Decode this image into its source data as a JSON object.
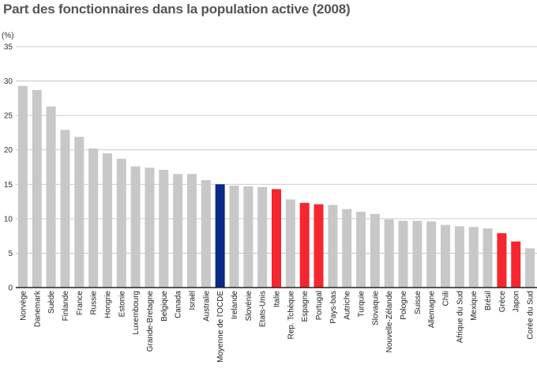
{
  "chart_data": {
    "type": "bar",
    "title": "Part des fonctionnaires dans la population active (2008)",
    "ylabel": "(%)",
    "xlabel": "",
    "ylim": [
      0,
      35
    ],
    "yticks": [
      0,
      5,
      10,
      15,
      20,
      25,
      30,
      35
    ],
    "grid": true,
    "categories": [
      "Norvège",
      "Danemark",
      "Suède",
      "Finlande",
      "France",
      "Russie",
      "Hongrie",
      "Estonie",
      "Luxembourg",
      "Grande-Bretagne",
      "Belgique",
      "Canada",
      "Israël",
      "Australie",
      "Moyenne de l'OCDE",
      "Irelande",
      "Slovénie",
      "Etats-Unis",
      "Italie",
      "Rep. Tchèque",
      "Espagne",
      "Portugal",
      "Pays-bas",
      "Autriche",
      "Turquie",
      "Slovaquie",
      "Nouvelle-Zélande",
      "Pologne",
      "Suisse",
      "Allemagne",
      "Chili",
      "Afrique du Sud",
      "Mexique",
      "Brésil",
      "Grèce",
      "Japon",
      "Corée du Sud"
    ],
    "values": [
      29.3,
      28.7,
      26.3,
      22.9,
      21.9,
      20.2,
      19.5,
      18.7,
      17.6,
      17.4,
      17.1,
      16.5,
      16.5,
      15.6,
      15.0,
      14.8,
      14.7,
      14.6,
      14.3,
      12.8,
      12.3,
      12.1,
      12.0,
      11.4,
      11.0,
      10.7,
      9.9,
      9.7,
      9.7,
      9.6,
      9.1,
      8.9,
      8.8,
      8.6,
      7.9,
      6.7,
      5.7
    ],
    "colors": [
      "#c8c8c8",
      "#c8c8c8",
      "#c8c8c8",
      "#c8c8c8",
      "#c8c8c8",
      "#c8c8c8",
      "#c8c8c8",
      "#c8c8c8",
      "#c8c8c8",
      "#c8c8c8",
      "#c8c8c8",
      "#c8c8c8",
      "#c8c8c8",
      "#c8c8c8",
      "#0b2a86",
      "#c8c8c8",
      "#c8c8c8",
      "#c8c8c8",
      "#f5262e",
      "#c8c8c8",
      "#f5262e",
      "#f5262e",
      "#c8c8c8",
      "#c8c8c8",
      "#c8c8c8",
      "#c8c8c8",
      "#c8c8c8",
      "#c8c8c8",
      "#c8c8c8",
      "#c8c8c8",
      "#c8c8c8",
      "#c8c8c8",
      "#c8c8c8",
      "#c8c8c8",
      "#f5262e",
      "#f5262e",
      "#c8c8c8"
    ]
  }
}
